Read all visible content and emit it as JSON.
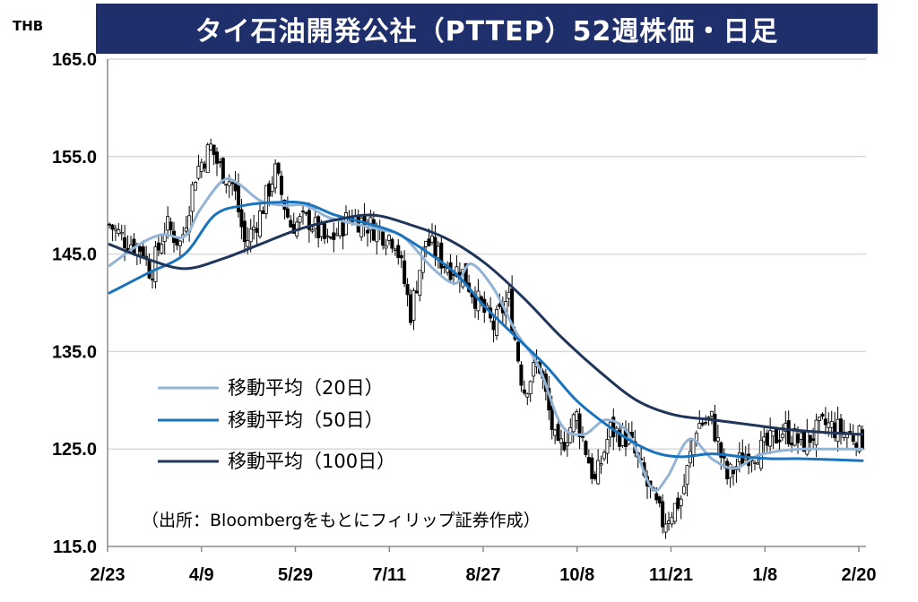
{
  "title": "タイ石油開発公社（PTTEP）52週株価・日足",
  "unit_label": "THB",
  "source": "（出所：Bloombergをもとにフィリップ証券作成）",
  "colors": {
    "title_bg": "#1f2f6b",
    "ma20": "#94b4d6",
    "ma50": "#1a74bd",
    "ma100": "#1f3559",
    "candle": "#000000",
    "grid": "#d9d9d9"
  },
  "chart_data": {
    "type": "candlestick",
    "title": "タイ石油開発公社（PTTEP）52週株価・日足",
    "ylabel": "THB",
    "ylim": [
      115,
      165
    ],
    "yticks": [
      "165.0",
      "155.0",
      "145.0",
      "135.0",
      "125.0",
      "115.0"
    ],
    "ytick_values": [
      165,
      155,
      145,
      135,
      125,
      115
    ],
    "xticks": [
      "2/23",
      "4/9",
      "5/29",
      "7/11",
      "8/27",
      "10/8",
      "11/21",
      "1/8",
      "2/20"
    ],
    "grid": true,
    "legend_position": "left-center",
    "close_anchors": [
      {
        "t": 0.0,
        "c": 148.0
      },
      {
        "t": 0.02,
        "c": 146.5
      },
      {
        "t": 0.045,
        "c": 145.5
      },
      {
        "t": 0.055,
        "c": 143.0
      },
      {
        "t": 0.075,
        "c": 148.0
      },
      {
        "t": 0.095,
        "c": 146.0
      },
      {
        "t": 0.115,
        "c": 153.5
      },
      {
        "t": 0.135,
        "c": 156.0
      },
      {
        "t": 0.145,
        "c": 154.0
      },
      {
        "t": 0.165,
        "c": 152.0
      },
      {
        "t": 0.18,
        "c": 146.0
      },
      {
        "t": 0.2,
        "c": 149.0
      },
      {
        "t": 0.22,
        "c": 153.5
      },
      {
        "t": 0.24,
        "c": 148.0
      },
      {
        "t": 0.265,
        "c": 148.5
      },
      {
        "t": 0.29,
        "c": 146.0
      },
      {
        "t": 0.32,
        "c": 149.0
      },
      {
        "t": 0.355,
        "c": 147.5
      },
      {
        "t": 0.38,
        "c": 146.5
      },
      {
        "t": 0.4,
        "c": 139.0
      },
      {
        "t": 0.42,
        "c": 146.5
      },
      {
        "t": 0.445,
        "c": 144.0
      },
      {
        "t": 0.47,
        "c": 143.0
      },
      {
        "t": 0.49,
        "c": 140.0
      },
      {
        "t": 0.51,
        "c": 137.5
      },
      {
        "t": 0.53,
        "c": 140.5
      },
      {
        "t": 0.55,
        "c": 131.0
      },
      {
        "t": 0.57,
        "c": 134.0
      },
      {
        "t": 0.595,
        "c": 124.5
      },
      {
        "t": 0.62,
        "c": 128.5
      },
      {
        "t": 0.645,
        "c": 121.5
      },
      {
        "t": 0.665,
        "c": 127.0
      },
      {
        "t": 0.69,
        "c": 126.0
      },
      {
        "t": 0.71,
        "c": 122.0
      },
      {
        "t": 0.735,
        "c": 117.5
      },
      {
        "t": 0.76,
        "c": 120.0
      },
      {
        "t": 0.78,
        "c": 127.5
      },
      {
        "t": 0.8,
        "c": 128.0
      },
      {
        "t": 0.82,
        "c": 122.0
      },
      {
        "t": 0.845,
        "c": 124.5
      },
      {
        "t": 0.87,
        "c": 125.0
      },
      {
        "t": 0.895,
        "c": 127.0
      },
      {
        "t": 0.92,
        "c": 125.5
      },
      {
        "t": 0.95,
        "c": 127.5
      },
      {
        "t": 1.0,
        "c": 126.0
      }
    ],
    "series": [
      {
        "name": "移動平均（20日）",
        "points": [
          [
            0,
            143.8
          ],
          [
            0.04,
            146.0
          ],
          [
            0.07,
            147.0
          ],
          [
            0.1,
            146.8
          ],
          [
            0.12,
            149.5
          ],
          [
            0.15,
            152.5
          ],
          [
            0.17,
            152.3
          ],
          [
            0.2,
            150.5
          ],
          [
            0.23,
            150.0
          ],
          [
            0.26,
            150.0
          ],
          [
            0.29,
            148.8
          ],
          [
            0.32,
            148.2
          ],
          [
            0.36,
            147.5
          ],
          [
            0.39,
            146.8
          ],
          [
            0.43,
            143.5
          ],
          [
            0.46,
            142.0
          ],
          [
            0.48,
            144.0
          ],
          [
            0.51,
            141.5
          ],
          [
            0.54,
            137.0
          ],
          [
            0.57,
            133.5
          ],
          [
            0.6,
            127.5
          ],
          [
            0.63,
            126.5
          ],
          [
            0.66,
            128.0
          ],
          [
            0.69,
            126.5
          ],
          [
            0.72,
            121.0
          ],
          [
            0.74,
            122.0
          ],
          [
            0.77,
            126.0
          ],
          [
            0.8,
            124.0
          ],
          [
            0.83,
            123.0
          ],
          [
            0.86,
            124.3
          ],
          [
            0.89,
            124.8
          ],
          [
            0.92,
            125.0
          ],
          [
            0.95,
            125.0
          ],
          [
            1.0,
            125.0
          ]
        ]
      },
      {
        "name": "移動平均（50日）",
        "points": [
          [
            0,
            141.0
          ],
          [
            0.05,
            143.0
          ],
          [
            0.1,
            145.0
          ],
          [
            0.14,
            149.0
          ],
          [
            0.18,
            150.0
          ],
          [
            0.22,
            150.3
          ],
          [
            0.26,
            150.2
          ],
          [
            0.3,
            149.0
          ],
          [
            0.34,
            148.2
          ],
          [
            0.38,
            147.2
          ],
          [
            0.42,
            145.3
          ],
          [
            0.46,
            143.0
          ],
          [
            0.5,
            139.5
          ],
          [
            0.54,
            136.5
          ],
          [
            0.58,
            133.5
          ],
          [
            0.62,
            130.0
          ],
          [
            0.66,
            127.5
          ],
          [
            0.7,
            125.5
          ],
          [
            0.73,
            124.5
          ],
          [
            0.76,
            124.2
          ],
          [
            0.8,
            124.5
          ],
          [
            0.84,
            124.2
          ],
          [
            0.88,
            124.0
          ],
          [
            0.92,
            124.0
          ],
          [
            1.0,
            123.8
          ]
        ]
      },
      {
        "name": "移動平均（100日）",
        "points": [
          [
            0,
            146.0
          ],
          [
            0.05,
            144.5
          ],
          [
            0.1,
            143.5
          ],
          [
            0.15,
            144.5
          ],
          [
            0.2,
            146.0
          ],
          [
            0.25,
            147.5
          ],
          [
            0.3,
            148.5
          ],
          [
            0.35,
            149.0
          ],
          [
            0.4,
            148.0
          ],
          [
            0.45,
            146.5
          ],
          [
            0.5,
            144.0
          ],
          [
            0.55,
            140.5
          ],
          [
            0.6,
            136.5
          ],
          [
            0.65,
            133.0
          ],
          [
            0.7,
            130.0
          ],
          [
            0.75,
            128.5
          ],
          [
            0.8,
            128.0
          ],
          [
            0.85,
            127.5
          ],
          [
            0.9,
            127.0
          ],
          [
            0.95,
            126.7
          ],
          [
            1.0,
            126.5
          ]
        ]
      }
    ]
  }
}
